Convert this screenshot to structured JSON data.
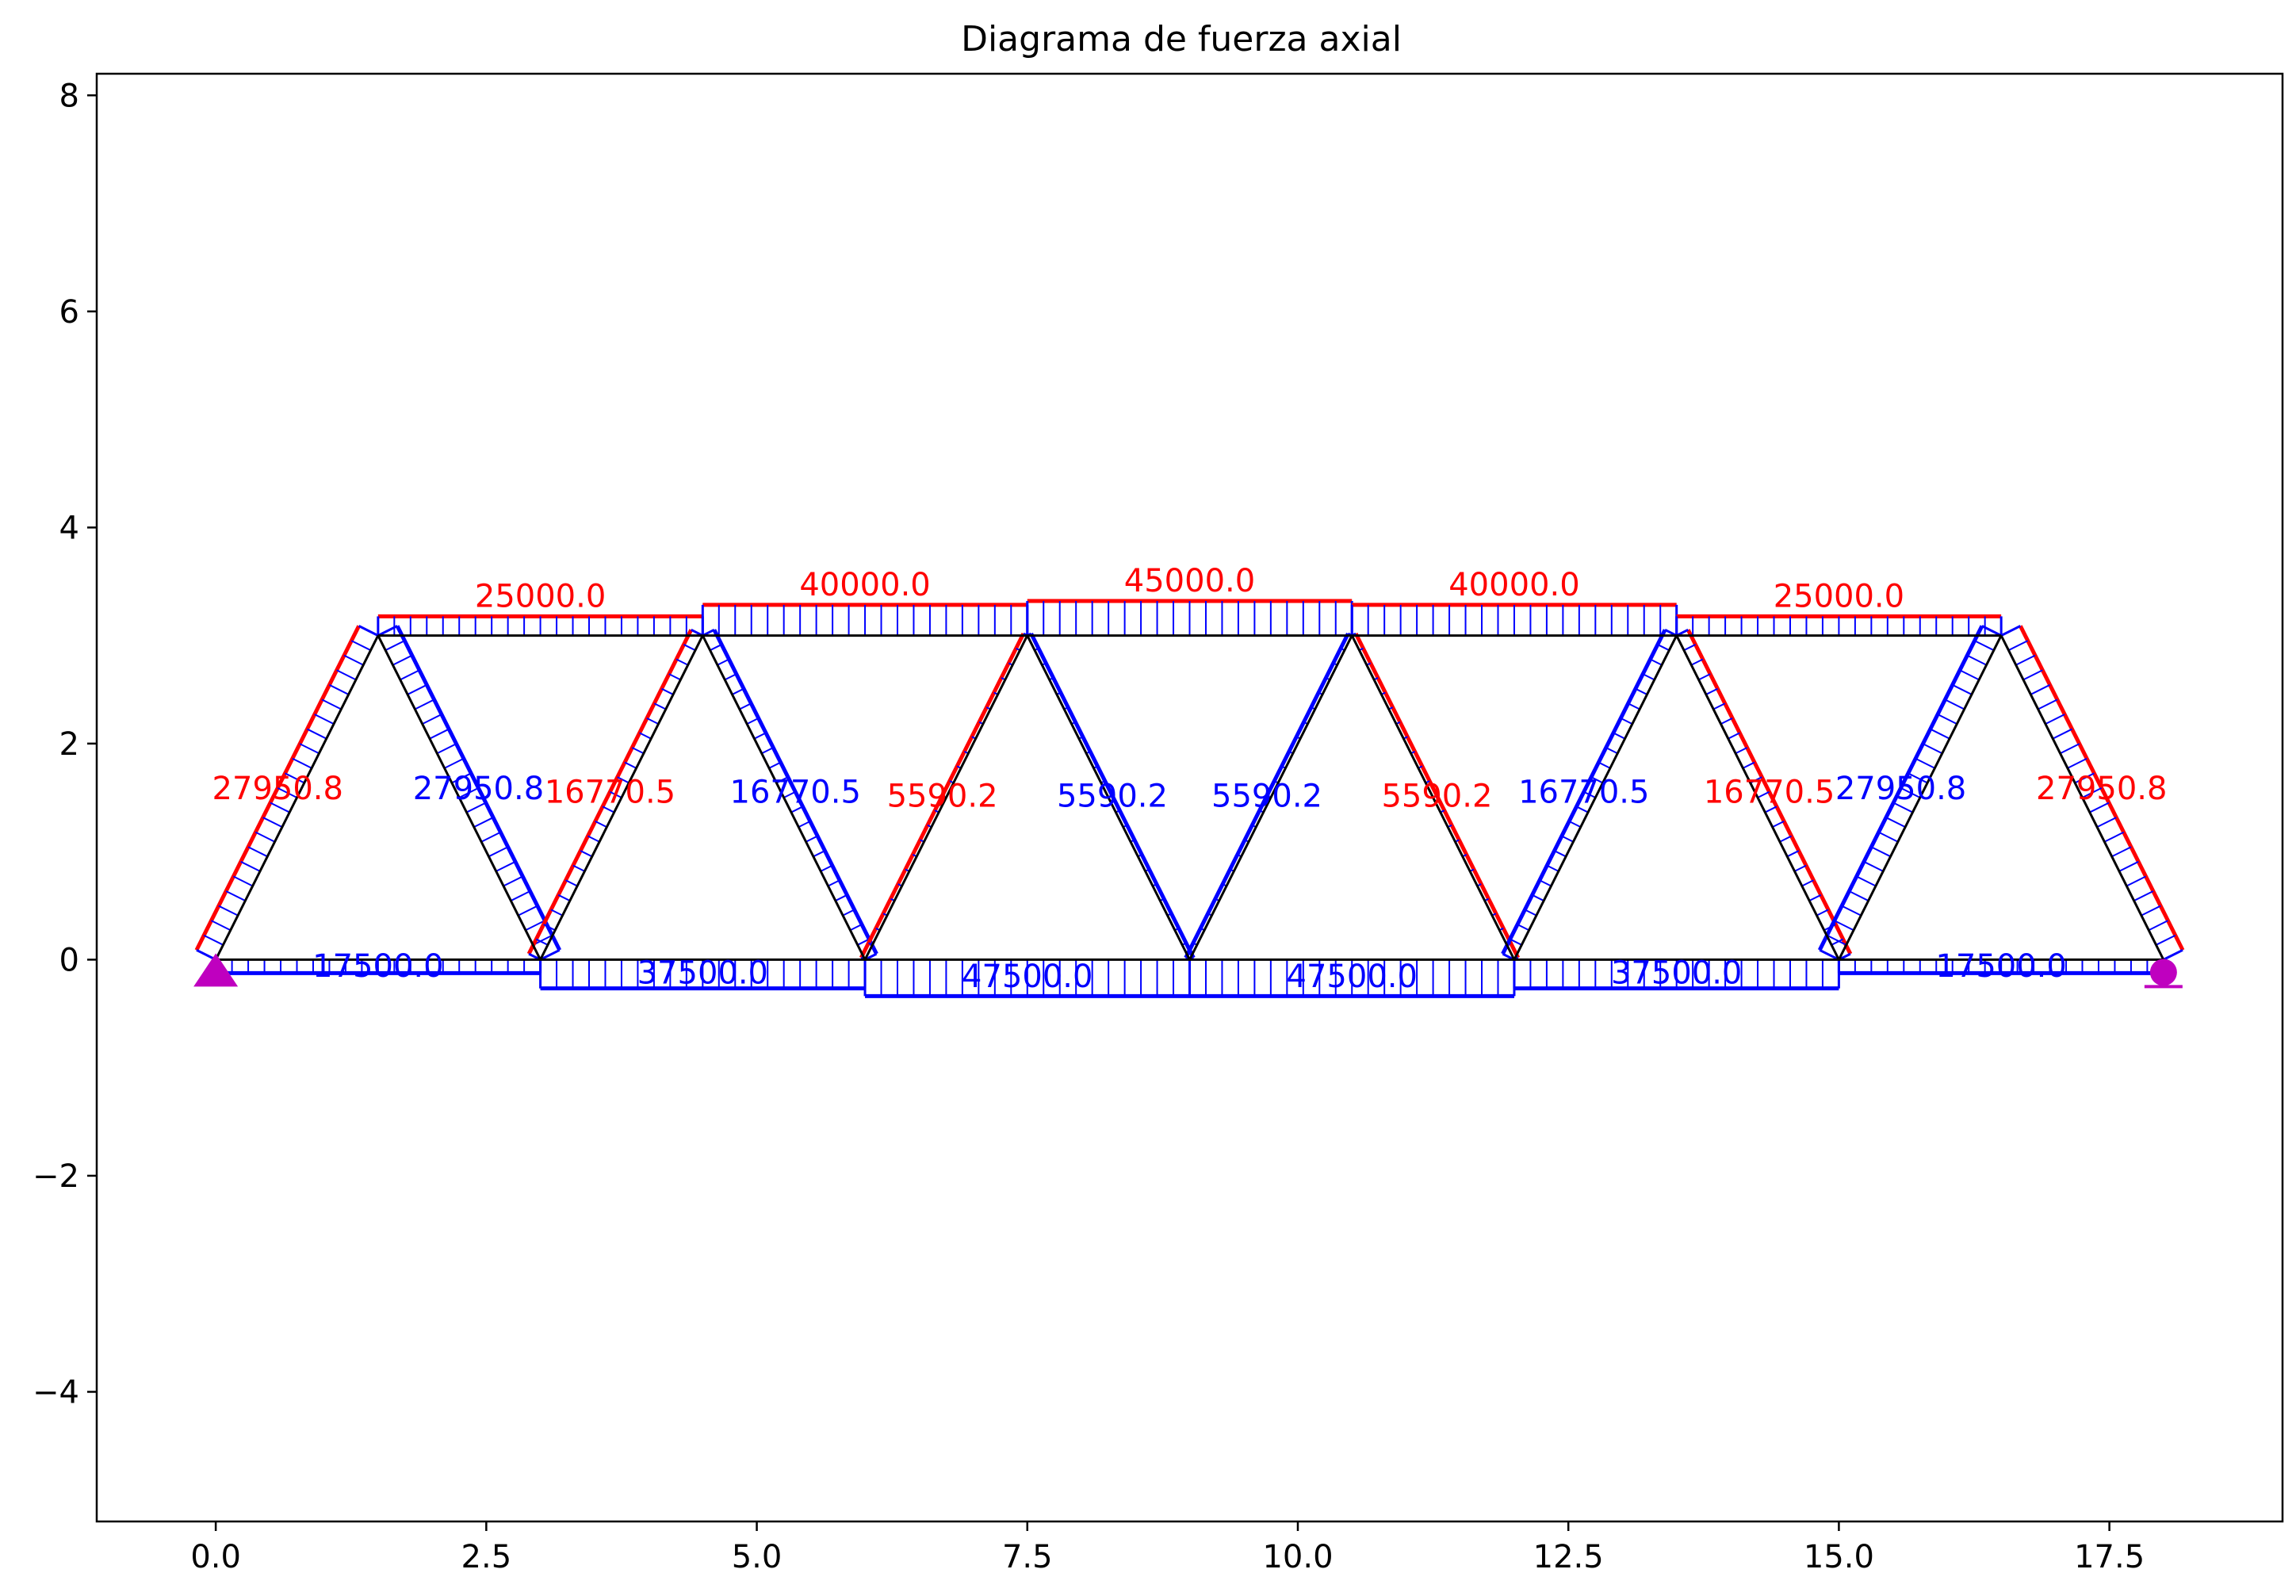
{
  "figure": {
    "title": "Diagrama de fuerza axial"
  },
  "axes": {
    "xlim": [
      -1.1,
      19.1
    ],
    "ylim": [
      -5.2,
      8.2
    ],
    "xticks": [
      "0.0",
      "2.5",
      "5.0",
      "7.5",
      "10.0",
      "12.5",
      "15.0",
      "17.5"
    ],
    "xtick_values": [
      0,
      2.5,
      5,
      7.5,
      10,
      12.5,
      15,
      17.5
    ],
    "yticks": [
      "−4",
      "−2",
      "0",
      "2",
      "4",
      "6",
      "8"
    ],
    "ytick_values": [
      -4,
      -2,
      0,
      2,
      4,
      6,
      8
    ]
  },
  "colors": {
    "structure": "#000000",
    "tension": "#ff0000",
    "compression": "#0000ff",
    "support": "#bf00bf"
  },
  "chart_data": {
    "type": "truss_axial_force_diagram",
    "title": "Diagrama de fuerza axial",
    "supports": [
      {
        "type": "pinned",
        "x": 0.0,
        "y": 0.0
      },
      {
        "type": "roller",
        "x": 18.0,
        "y": 0.0
      }
    ],
    "members": [
      {
        "x1": 0.0,
        "y1": 0.0,
        "x2": 1.5,
        "y2": 3.0,
        "force": 27950.8,
        "label": "27950.8",
        "kind": "tension"
      },
      {
        "x1": 1.5,
        "y1": 3.0,
        "x2": 3.0,
        "y2": 0.0,
        "force": -27950.8,
        "label": "27950.8",
        "kind": "compression"
      },
      {
        "x1": 3.0,
        "y1": 0.0,
        "x2": 4.5,
        "y2": 3.0,
        "force": 16770.5,
        "label": "16770.5",
        "kind": "tension"
      },
      {
        "x1": 4.5,
        "y1": 3.0,
        "x2": 6.0,
        "y2": 0.0,
        "force": -16770.5,
        "label": "16770.5",
        "kind": "compression"
      },
      {
        "x1": 6.0,
        "y1": 0.0,
        "x2": 7.5,
        "y2": 3.0,
        "force": 5590.2,
        "label": "5590.2",
        "kind": "tension"
      },
      {
        "x1": 7.5,
        "y1": 3.0,
        "x2": 9.0,
        "y2": 0.0,
        "force": -5590.2,
        "label": "5590.2",
        "kind": "compression"
      },
      {
        "x1": 9.0,
        "y1": 0.0,
        "x2": 10.5,
        "y2": 3.0,
        "force": -5590.2,
        "label": "5590.2",
        "kind": "compression"
      },
      {
        "x1": 10.5,
        "y1": 3.0,
        "x2": 12.0,
        "y2": 0.0,
        "force": 5590.2,
        "label": "5590.2",
        "kind": "tension"
      },
      {
        "x1": 12.0,
        "y1": 0.0,
        "x2": 13.5,
        "y2": 3.0,
        "force": -16770.5,
        "label": "16770.5",
        "kind": "compression"
      },
      {
        "x1": 13.5,
        "y1": 3.0,
        "x2": 15.0,
        "y2": 0.0,
        "force": 16770.5,
        "label": "16770.5",
        "kind": "tension"
      },
      {
        "x1": 15.0,
        "y1": 0.0,
        "x2": 16.5,
        "y2": 3.0,
        "force": -27950.8,
        "label": "27950.8",
        "kind": "compression"
      },
      {
        "x1": 16.5,
        "y1": 3.0,
        "x2": 18.0,
        "y2": 0.0,
        "force": 27950.8,
        "label": "27950.8",
        "kind": "tension"
      },
      {
        "x1": 1.5,
        "y1": 3.0,
        "x2": 4.5,
        "y2": 3.0,
        "force": 25000.0,
        "label": "25000.0",
        "kind": "tension"
      },
      {
        "x1": 4.5,
        "y1": 3.0,
        "x2": 7.5,
        "y2": 3.0,
        "force": 40000.0,
        "label": "40000.0",
        "kind": "tension"
      },
      {
        "x1": 7.5,
        "y1": 3.0,
        "x2": 10.5,
        "y2": 3.0,
        "force": 45000.0,
        "label": "45000.0",
        "kind": "tension"
      },
      {
        "x1": 10.5,
        "y1": 3.0,
        "x2": 13.5,
        "y2": 3.0,
        "force": 40000.0,
        "label": "40000.0",
        "kind": "tension"
      },
      {
        "x1": 13.5,
        "y1": 3.0,
        "x2": 16.5,
        "y2": 3.0,
        "force": 25000.0,
        "label": "25000.0",
        "kind": "tension"
      },
      {
        "x1": 0.0,
        "y1": 0.0,
        "x2": 3.0,
        "y2": 0.0,
        "force": -17500.0,
        "label": "17500.0",
        "kind": "compression"
      },
      {
        "x1": 3.0,
        "y1": 0.0,
        "x2": 6.0,
        "y2": 0.0,
        "force": -37500.0,
        "label": "37500.0",
        "kind": "compression"
      },
      {
        "x1": 6.0,
        "y1": 0.0,
        "x2": 9.0,
        "y2": 0.0,
        "force": -47500.0,
        "label": "47500.0",
        "kind": "compression"
      },
      {
        "x1": 9.0,
        "y1": 0.0,
        "x2": 12.0,
        "y2": 0.0,
        "force": -47500.0,
        "label": "47500.0",
        "kind": "compression"
      },
      {
        "x1": 12.0,
        "y1": 0.0,
        "x2": 15.0,
        "y2": 0.0,
        "force": -37500.0,
        "label": "37500.0",
        "kind": "compression"
      },
      {
        "x1": 15.0,
        "y1": 0.0,
        "x2": 18.0,
        "y2": 0.0,
        "force": -17500.0,
        "label": "17500.0",
        "kind": "compression"
      }
    ]
  }
}
